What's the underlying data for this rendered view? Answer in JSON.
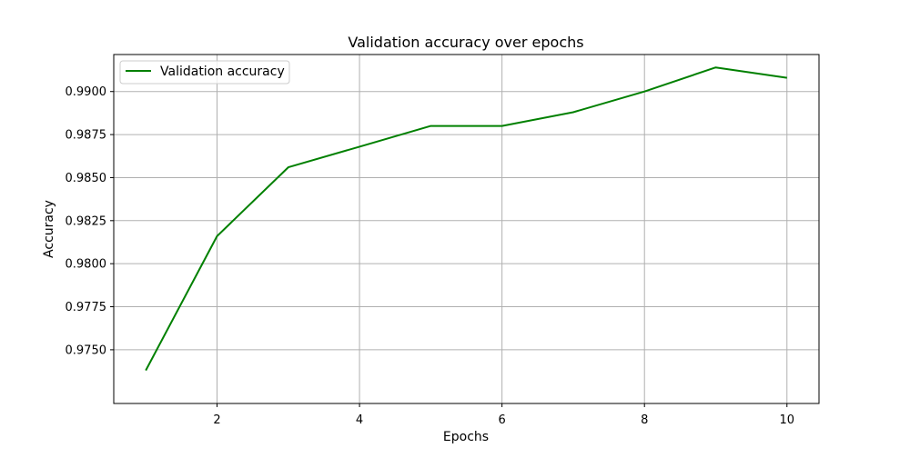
{
  "chart_data": {
    "type": "line",
    "title": "Validation accuracy over epochs",
    "xlabel": "Epochs",
    "ylabel": "Accuracy",
    "xlim": [
      0.55,
      10.45
    ],
    "ylim": [
      0.97188,
      0.99215
    ],
    "xticks": [
      2,
      4,
      6,
      8,
      10
    ],
    "xtick_labels": [
      "2",
      "4",
      "6",
      "8",
      "10"
    ],
    "yticks": [
      0.975,
      0.9775,
      0.98,
      0.9825,
      0.985,
      0.9875,
      0.99
    ],
    "ytick_labels": [
      "0.9750",
      "0.9775",
      "0.9800",
      "0.9825",
      "0.9850",
      "0.9875",
      "0.9900"
    ],
    "grid": true,
    "legend_position": "upper-left",
    "x": [
      1,
      2,
      3,
      4,
      5,
      6,
      7,
      8,
      9,
      10
    ],
    "series": [
      {
        "name": "Validation accuracy",
        "color": "#008000",
        "values": [
          0.9738,
          0.9816,
          0.9856,
          0.9868,
          0.988,
          0.988,
          0.9888,
          0.99,
          0.9914,
          0.9908
        ]
      }
    ]
  }
}
